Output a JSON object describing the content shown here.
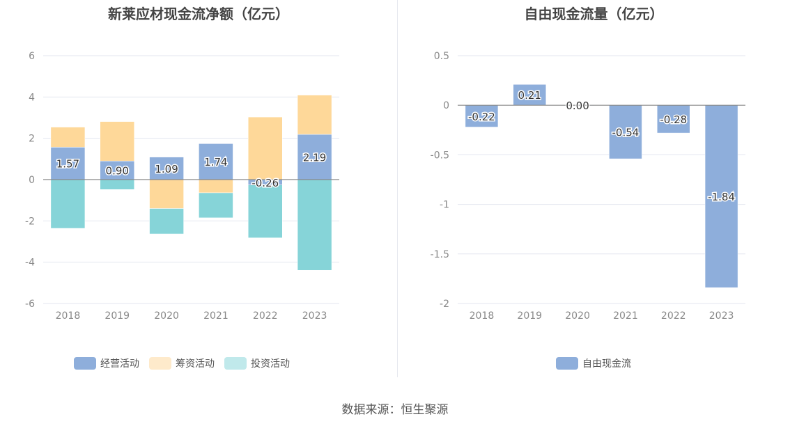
{
  "chart_data": [
    {
      "type": "bar",
      "stacked": true,
      "title": "新莱应材现金流净额（亿元）",
      "categories": [
        "2018",
        "2019",
        "2020",
        "2021",
        "2022",
        "2023"
      ],
      "ylim": [
        -6,
        6
      ],
      "yticks": [
        6,
        4,
        2,
        0,
        -2,
        -4,
        -6
      ],
      "grid": true,
      "legend": "bottom",
      "series": [
        {
          "name": "经营活动",
          "color": "#8eaedb",
          "values": [
            1.57,
            0.9,
            1.09,
            1.74,
            -0.26,
            2.19
          ],
          "labels": [
            "1.57",
            "0.90",
            "1.09",
            "1.74",
            "-0.26",
            "2.19"
          ]
        },
        {
          "name": "筹资活动",
          "color": "#fed899",
          "legend_color": "#feeacb",
          "values": [
            0.97,
            1.91,
            -1.4,
            -0.64,
            3.03,
            1.9
          ]
        },
        {
          "name": "投资活动",
          "color": "#86d4d8",
          "legend_color": "#c0e9eb",
          "values": [
            -2.36,
            -0.48,
            -1.23,
            -1.21,
            -2.56,
            -4.39
          ]
        }
      ]
    },
    {
      "type": "bar",
      "title": "自由现金流量（亿元）",
      "categories": [
        "2018",
        "2019",
        "2020",
        "2021",
        "2022",
        "2023"
      ],
      "ylim": [
        -2,
        0.5
      ],
      "yticks": [
        0.5,
        0,
        -0.5,
        -1,
        -1.5,
        -2
      ],
      "ytick_labels": [
        "0.5",
        "0",
        "-0.5",
        "-1",
        "-1.5",
        "-2"
      ],
      "grid": true,
      "legend": "bottom",
      "series": [
        {
          "name": "自由现金流",
          "color": "#8eaedb",
          "values": [
            -0.22,
            0.21,
            0.0,
            -0.54,
            -0.28,
            -1.84
          ],
          "labels": [
            "-0.22",
            "0.21",
            "0.00",
            "-0.54",
            "-0.28",
            "-1.84"
          ]
        }
      ]
    }
  ],
  "source": "数据来源：恒生聚源"
}
